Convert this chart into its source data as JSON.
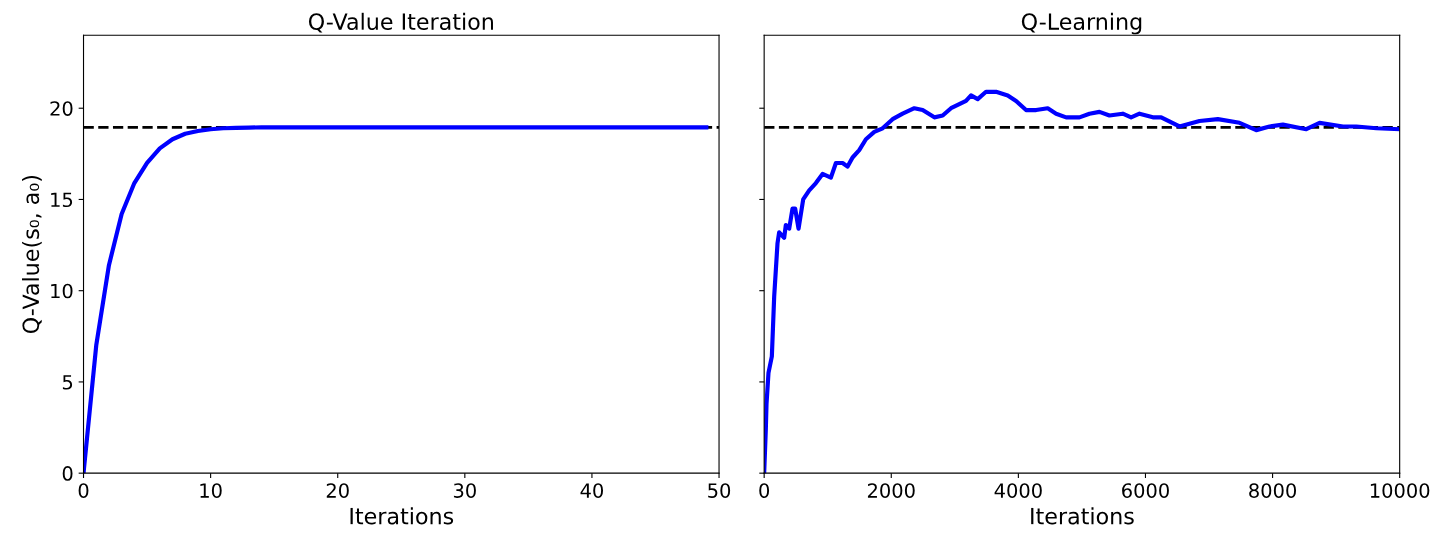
{
  "chart_data": [
    {
      "type": "line",
      "title": "Q-Value Iteration",
      "xlabel": "Iterations",
      "ylabel": "Q-Value(s₀, a₀)",
      "x": [
        0,
        1,
        2,
        3,
        4,
        5,
        6,
        7,
        8,
        9,
        10,
        11,
        12,
        13,
        14,
        15,
        16,
        17,
        18,
        19,
        20,
        21,
        22,
        23,
        24,
        25,
        26,
        27,
        28,
        29,
        30,
        31,
        32,
        33,
        34,
        35,
        36,
        37,
        38,
        39,
        40,
        41,
        42,
        43,
        44,
        45,
        46,
        47,
        48,
        49
      ],
      "series": [
        {
          "color": "#0000ff",
          "values": [
            0,
            7.0,
            11.4,
            14.2,
            15.9,
            17.0,
            17.8,
            18.3,
            18.6,
            18.75,
            18.85,
            18.9,
            18.92,
            18.94,
            18.95,
            18.95,
            18.95,
            18.95,
            18.95,
            18.95,
            18.95,
            18.95,
            18.95,
            18.95,
            18.95,
            18.95,
            18.95,
            18.95,
            18.95,
            18.95,
            18.95,
            18.95,
            18.95,
            18.95,
            18.95,
            18.95,
            18.95,
            18.95,
            18.95,
            18.95,
            18.95,
            18.95,
            18.95,
            18.95,
            18.95,
            18.95,
            18.95,
            18.95,
            18.95,
            18.95
          ]
        }
      ],
      "xlim": [
        0,
        50
      ],
      "xticks": [
        0,
        10,
        20,
        30,
        40,
        50
      ],
      "ylim": [
        0,
        24
      ],
      "yticks": [
        0,
        5,
        10,
        15,
        20
      ],
      "ref_lines": [
        {
          "axis": "y",
          "value": 18.95,
          "color": "#000000",
          "line_style": "dashed"
        }
      ],
      "grid": false,
      "legend": false,
      "marker": "none",
      "line_style": "solid"
    },
    {
      "type": "line",
      "title": "Q-Learning",
      "xlabel": "Iterations",
      "x": [
        0,
        26,
        37,
        68,
        121,
        158,
        210,
        236,
        315,
        341,
        394,
        446,
        488,
        541,
        614,
        709,
        814,
        919,
        1050,
        1129,
        1234,
        1313,
        1391,
        1496,
        1601,
        1733,
        1864,
        2021,
        2179,
        2363,
        2494,
        2678,
        2809,
        2940,
        3176,
        3255,
        3360,
        3491,
        3649,
        3833,
        3964,
        4121,
        4279,
        4462,
        4594,
        4751,
        4961,
        5119,
        5276,
        5433,
        5643,
        5774,
        5906,
        6116,
        6247,
        6535,
        6850,
        7139,
        7480,
        7743,
        7953,
        8163,
        8530,
        8740,
        9108,
        9318,
        9633,
        10000
      ],
      "series": [
        {
          "color": "#0000ff",
          "values": [
            0,
            2.4,
            3.8,
            5.5,
            6.4,
            9.7,
            12.6,
            13.2,
            12.9,
            13.6,
            13.4,
            14.5,
            14.5,
            13.4,
            15.0,
            15.5,
            15.9,
            16.4,
            16.2,
            17.0,
            17.0,
            16.8,
            17.3,
            17.7,
            18.3,
            18.7,
            18.9,
            19.4,
            19.7,
            20.0,
            19.9,
            19.5,
            19.6,
            20.0,
            20.4,
            20.7,
            20.5,
            20.9,
            20.9,
            20.7,
            20.4,
            19.9,
            19.9,
            20.0,
            19.7,
            19.5,
            19.5,
            19.7,
            19.8,
            19.6,
            19.7,
            19.5,
            19.7,
            19.5,
            19.5,
            19.0,
            19.3,
            19.4,
            19.2,
            18.8,
            19.0,
            19.1,
            18.85,
            19.2,
            19.0,
            19.0,
            18.9,
            18.85
          ]
        }
      ],
      "xlim": [
        0,
        10000
      ],
      "xticks": [
        0,
        2000,
        4000,
        6000,
        8000,
        10000
      ],
      "ylim": [
        0,
        24
      ],
      "yticks": [
        0,
        5,
        10,
        15,
        20
      ],
      "tick_labels": "x",
      "ref_lines": [
        {
          "axis": "y",
          "value": 18.95,
          "color": "#000000",
          "line_style": "dashed"
        }
      ],
      "grid": false,
      "legend": false,
      "marker": "none",
      "line_style": "solid"
    }
  ]
}
